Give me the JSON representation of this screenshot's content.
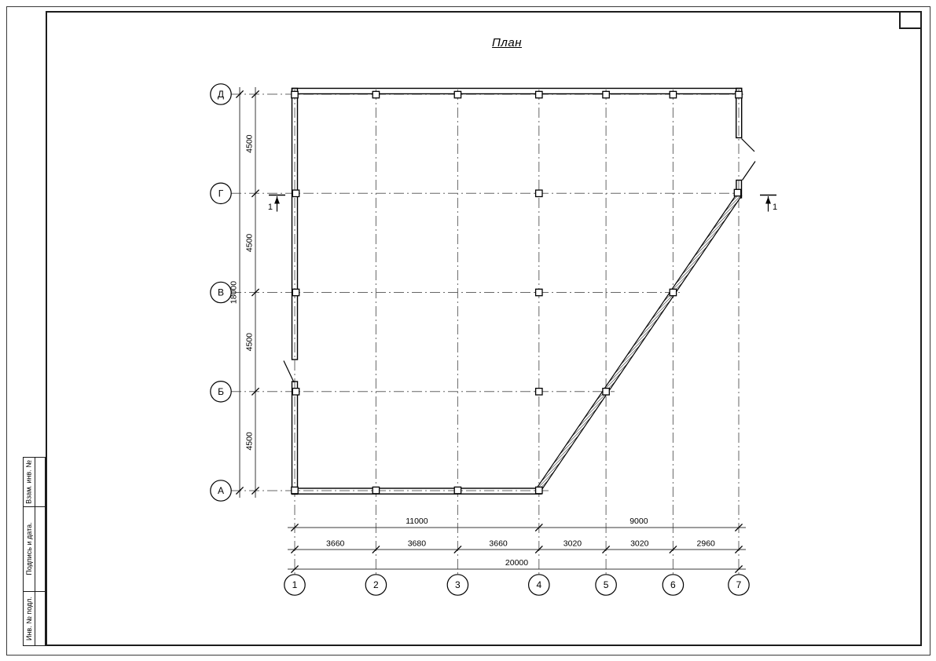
{
  "title": "План",
  "colors": {
    "ink": "#000000",
    "grid_line": "#666666",
    "paper": "#ffffff"
  },
  "frame": {
    "sidebar_cells": [
      "Взам. инв. №",
      "Подпись и дата.",
      "Инв. № подл."
    ]
  },
  "plan": {
    "horizontal_axes": [
      "Д",
      "Г",
      "В",
      "Б",
      "А"
    ],
    "vertical_axes": [
      "1",
      "2",
      "3",
      "4",
      "5",
      "6",
      "7"
    ],
    "dimensions": {
      "left_segments": [
        "4500",
        "4500",
        "4500",
        "4500"
      ],
      "left_total": "18000",
      "bottom_group": [
        "11000",
        "9000"
      ],
      "bottom_segments": [
        "3660",
        "3680",
        "3660",
        "3020",
        "3020",
        "2960"
      ],
      "bottom_total": "20000"
    },
    "section_marks": [
      {
        "label": "1"
      },
      {
        "label": "1"
      }
    ]
  }
}
